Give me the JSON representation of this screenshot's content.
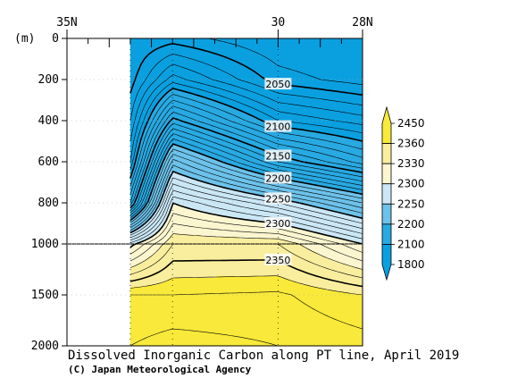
{
  "chart_data": {
    "type": "heatmap",
    "title": "Dissolved Inorganic Carbon along PT line, April 2019",
    "credit": "(C) Japan Meteorological Agency",
    "yunit_label": "(m)",
    "x_ticks": [
      {
        "lat": 35,
        "label": "35N"
      },
      {
        "lat": 30,
        "label": "30"
      },
      {
        "lat": 28,
        "label": "28N"
      }
    ],
    "xlim": [
      35,
      28
    ],
    "y_ticks": [
      {
        "depth": 0,
        "label": "0"
      },
      {
        "depth": 200,
        "label": "200"
      },
      {
        "depth": 400,
        "label": "400"
      },
      {
        "depth": 600,
        "label": "600"
      },
      {
        "depth": 800,
        "label": "800"
      },
      {
        "depth": 1000,
        "label": "1000"
      },
      {
        "depth": 1500,
        "label": "1500"
      },
      {
        "depth": 2000,
        "label": "2000"
      }
    ],
    "ylim": [
      0,
      2000
    ],
    "y_axis_break_depth": 1000,
    "stations_lat": [
      33.5,
      32.5,
      30,
      28
    ],
    "profile_depths": [
      0,
      200,
      400,
      600,
      800,
      1000,
      1500,
      2000
    ],
    "dic": [
      [
        2040,
        2045,
        2060,
        2080,
        2130,
        2295,
        2370,
        2380
      ],
      [
        2045,
        2085,
        2155,
        2235,
        2300,
        2340,
        2370,
        2385
      ],
      [
        2030,
        2045,
        2090,
        2160,
        2260,
        2340,
        2372,
        2380
      ],
      [
        2025,
        2035,
        2075,
        2125,
        2220,
        2300,
        2360,
        2375
      ]
    ],
    "contour_levels": [
      2040,
      2050,
      2060,
      2070,
      2080,
      2090,
      2100,
      2110,
      2120,
      2130,
      2140,
      2150,
      2160,
      2170,
      2180,
      2190,
      2200,
      2210,
      2220,
      2230,
      2240,
      2250,
      2260,
      2270,
      2280,
      2290,
      2300,
      2310,
      2320,
      2330,
      2340,
      2350,
      2360,
      2370,
      2380
    ],
    "bold_levels": [
      2050,
      2100,
      2150,
      2200,
      2250,
      2300,
      2350
    ],
    "contour_labels": [
      {
        "level": 2050,
        "text": "2050"
      },
      {
        "level": 2100,
        "text": "2100"
      },
      {
        "level": 2150,
        "text": "2150"
      },
      {
        "level": 2200,
        "text": "2200"
      },
      {
        "level": 2250,
        "text": "2250"
      },
      {
        "level": 2300,
        "text": "2300"
      },
      {
        "level": 2350,
        "text": "2350"
      }
    ],
    "colorbar": {
      "labels": [
        "2450",
        "2360",
        "2330",
        "2300",
        "2250",
        "2200",
        "2100",
        "1800"
      ],
      "bins": [
        {
          "lo": 1800,
          "hi": 2100,
          "color": "#0aa0e0"
        },
        {
          "lo": 2100,
          "hi": 2200,
          "color": "#28a9e2"
        },
        {
          "lo": 2200,
          "hi": 2250,
          "color": "#6cc2ea"
        },
        {
          "lo": 2250,
          "hi": 2300,
          "color": "#cbe7f6"
        },
        {
          "lo": 2300,
          "hi": 2330,
          "color": "#fbf6cf"
        },
        {
          "lo": 2330,
          "hi": 2360,
          "color": "#f9ee9d"
        },
        {
          "lo": 2360,
          "hi": 2450,
          "color": "#f9e93a"
        }
      ]
    }
  }
}
